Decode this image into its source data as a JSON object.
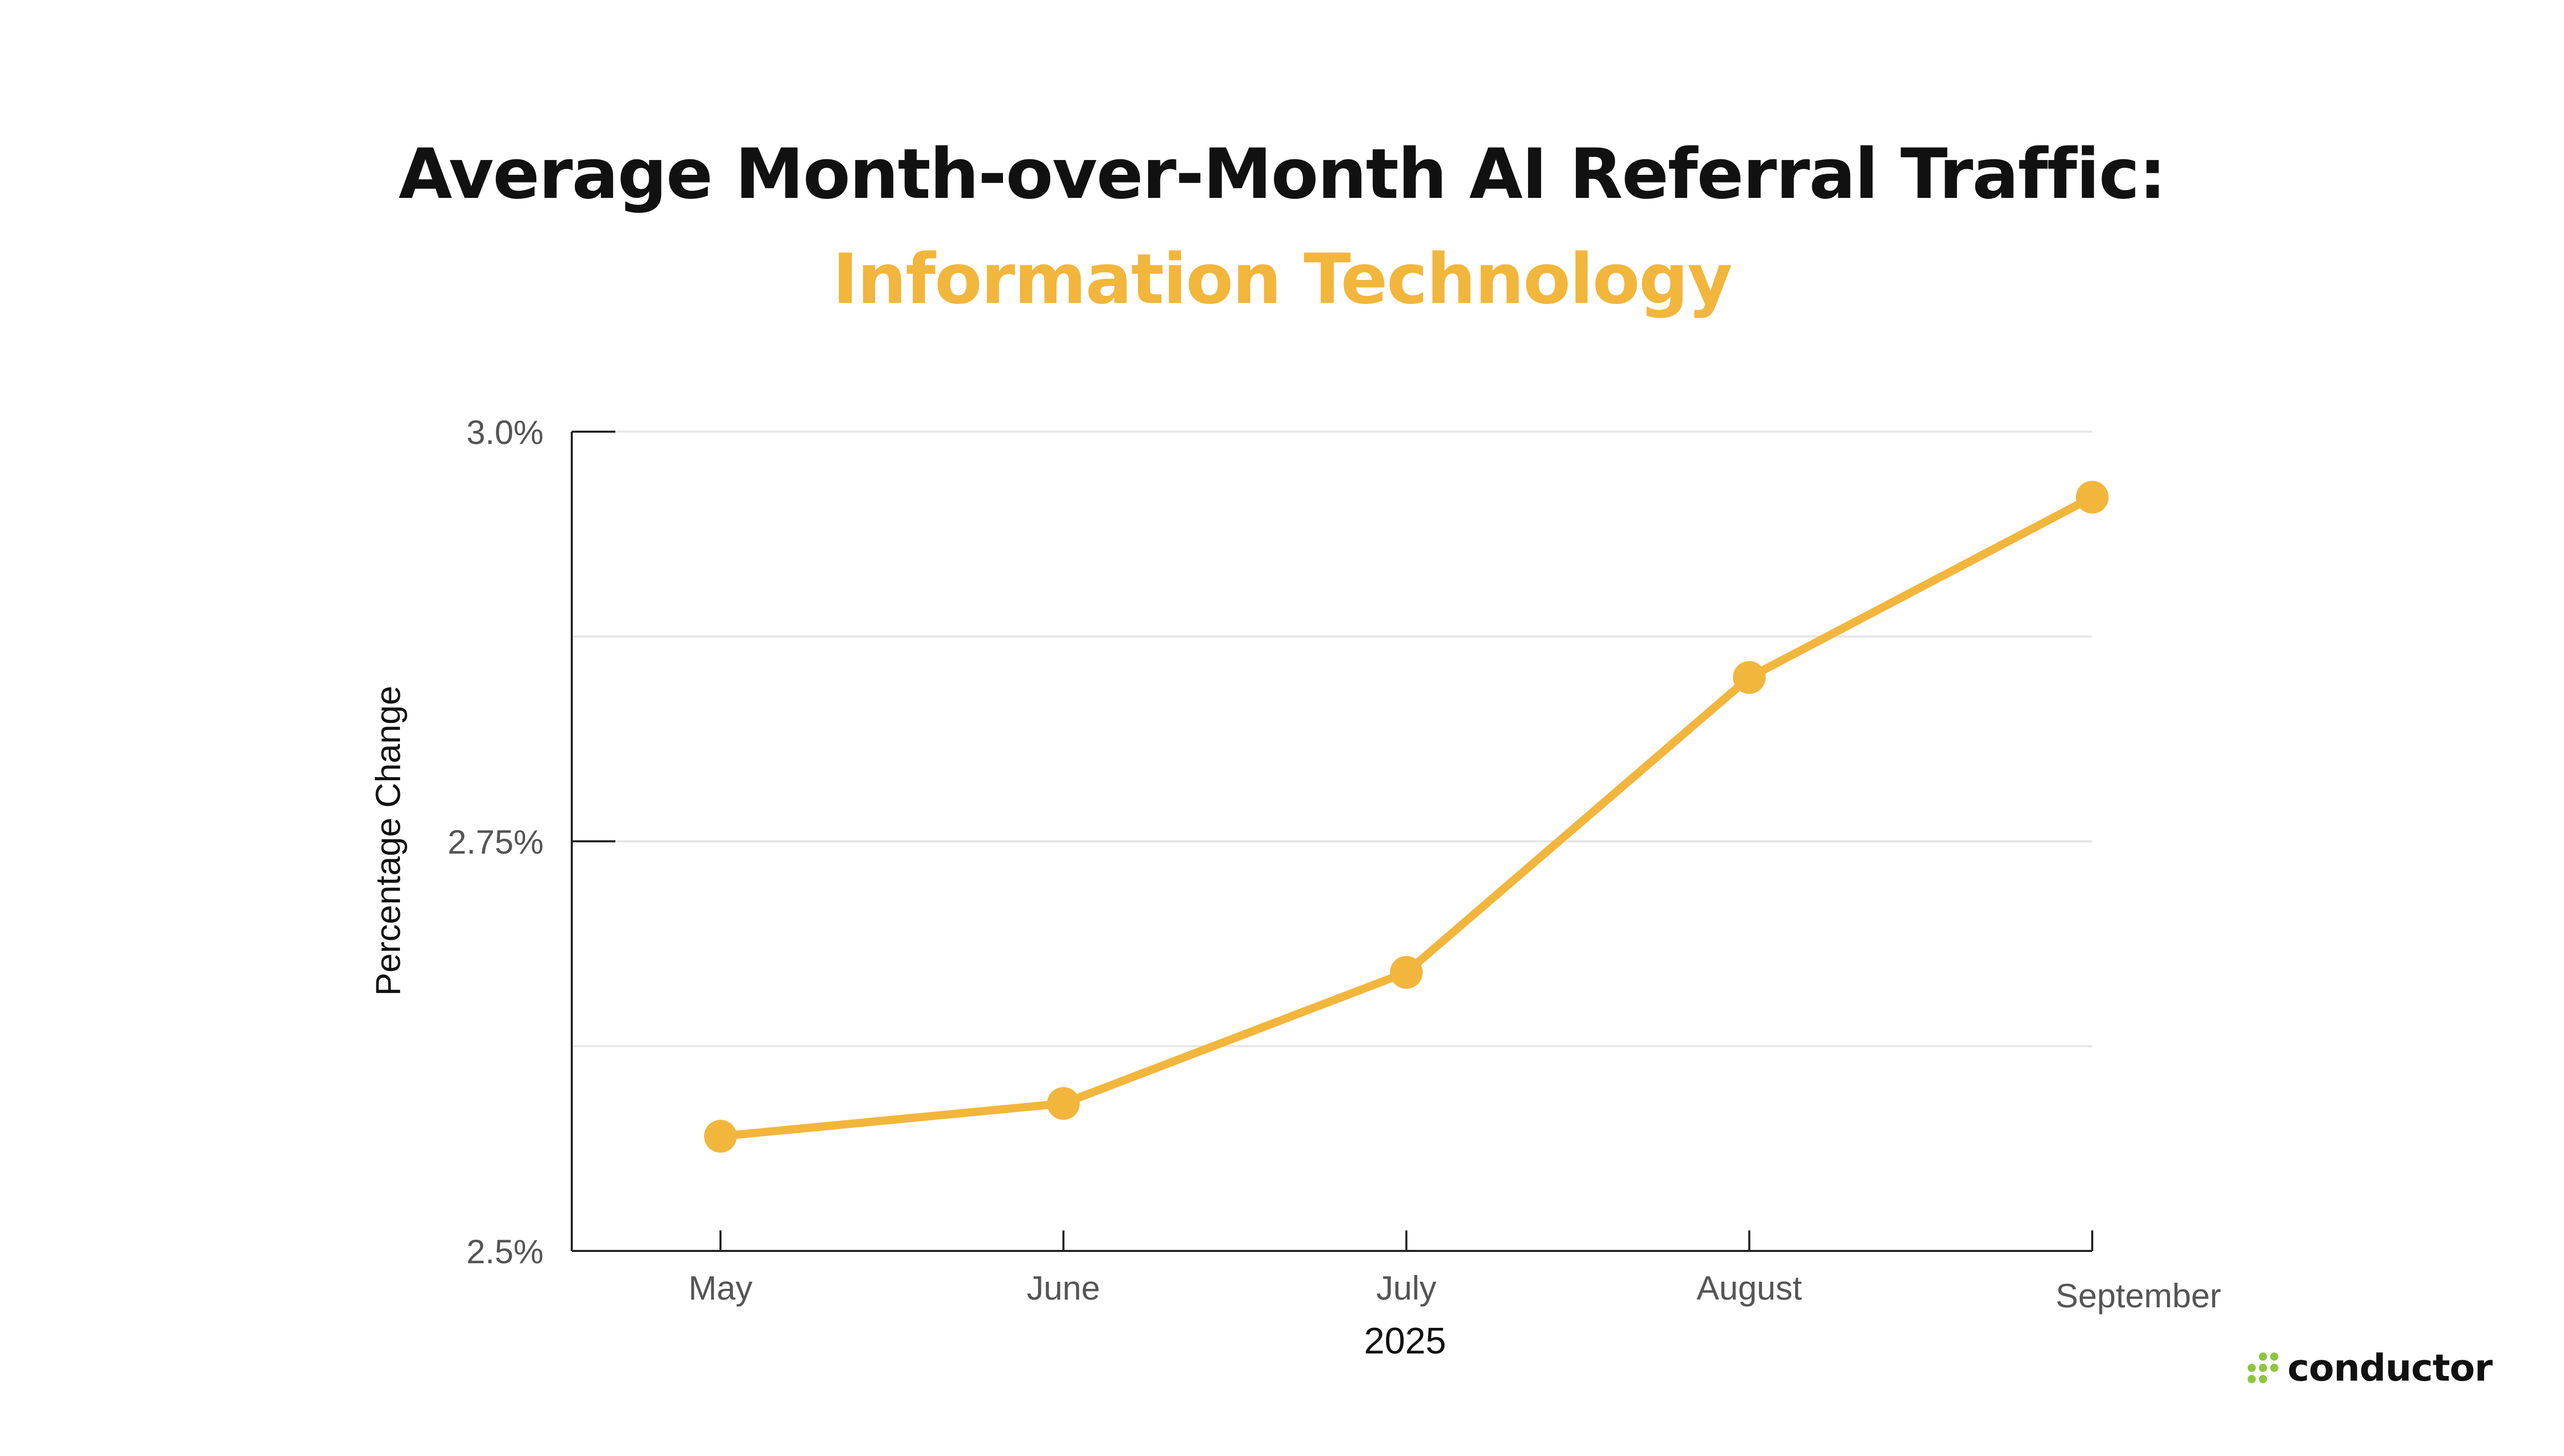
{
  "colors": {
    "accent": "#f2b63c",
    "title": "#111111",
    "axis": "#222222",
    "grid": "#e6e6e6",
    "tick_text": "#555555",
    "brand": "#8cc63f"
  },
  "brand": {
    "name": "conductor",
    "icon": "conductor-dots-logo"
  },
  "chart_data": {
    "type": "line",
    "title": "Average Month-over-Month AI Referral Traffic:",
    "subtitle": "Information Technology",
    "xlabel": "2025",
    "ylabel": "Percentage Change",
    "categories": [
      "May",
      "June",
      "July",
      "August",
      "September"
    ],
    "series": [
      {
        "values": [
          2.57,
          2.59,
          2.67,
          2.85,
          2.96
        ]
      }
    ],
    "ylim": [
      2.5,
      3.0
    ],
    "yticks": [
      {
        "value": 2.5,
        "label": "2.5%"
      },
      {
        "value": 2.75,
        "label": "2.75%"
      },
      {
        "value": 3.0,
        "label": "3.0%"
      }
    ],
    "grid": true,
    "legend": "none"
  }
}
